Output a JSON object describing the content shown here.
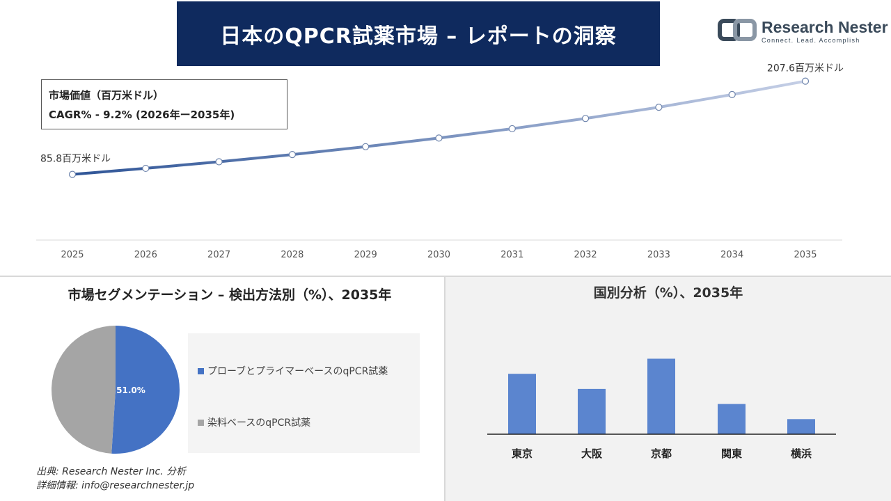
{
  "header": {
    "title": "日本のQPCR試薬市場 – レポートの洞察",
    "logo_name": "Research Nester",
    "logo_tagline": "Connect. Lead. Accomplish"
  },
  "info": {
    "line1": "市場価値（百万米ドル）",
    "line2": "CAGR% - 9.2% (2026年ー2035年)"
  },
  "segment": {
    "title": "市場セグメンテーション – 検出方法別（%）、2035年",
    "legend": [
      "プローブとプライマーベースのqPCR試薬",
      "染料ベースのqPCR試薬"
    ]
  },
  "country": {
    "title": "国別分析（%）、2035年"
  },
  "source": {
    "line1": "出典: Research Nester Inc. 分析",
    "line2": "詳細情報: info@researchnester.jp"
  },
  "colors": {
    "navy": "#0f2a5e",
    "line_start": "#2f5597",
    "line_end": "#c5cfe6",
    "pie_blue": "#4472c4",
    "pie_gray": "#a5a5a5",
    "bar": "#5b85cf"
  },
  "chart_data": [
    {
      "type": "line",
      "x": [
        2025,
        2026,
        2027,
        2028,
        2029,
        2030,
        2031,
        2032,
        2033,
        2034,
        2035
      ],
      "values": [
        85.8,
        93.7,
        102.3,
        111.7,
        122.0,
        133.3,
        145.5,
        158.9,
        173.5,
        190.1,
        207.6
      ],
      "start_label": "85.8百万米ドル",
      "end_label": "207.6百万米ドル",
      "ylim": [
        0,
        240
      ]
    },
    {
      "type": "pie",
      "labels": [
        "プローブとプライマーベースのqPCR試薬",
        "染料ベースのqPCR試薬"
      ],
      "values": [
        51.0,
        49.0
      ],
      "shown_label": "51.0%"
    },
    {
      "type": "bar",
      "categories": [
        "東京",
        "大阪",
        "京都",
        "関東",
        "横浜"
      ],
      "values": [
        28,
        21,
        35,
        14,
        7
      ],
      "ylim": [
        0,
        40
      ]
    }
  ]
}
